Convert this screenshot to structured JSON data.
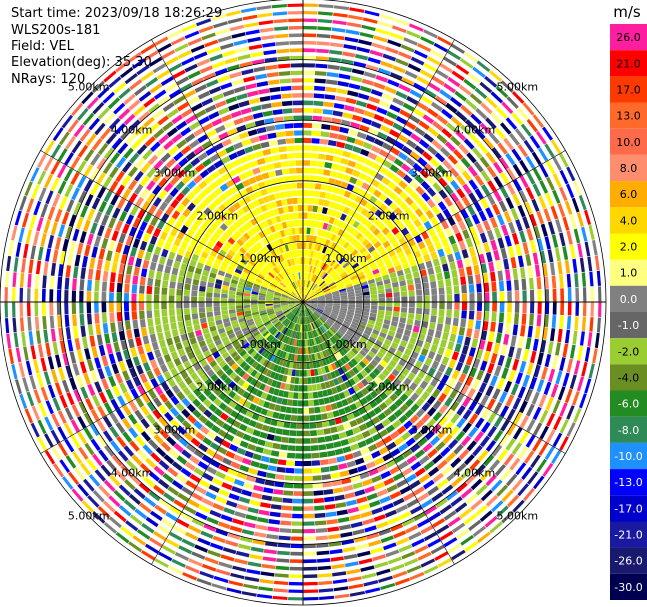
{
  "info": {
    "start_time": "Start time: 2023/09/18 18:26:29",
    "instrument": "WLS200s-181",
    "field": "Field: VEL",
    "elevation": "Elevation(deg): 35.30",
    "nrays": "NRays: 120"
  },
  "chart_data": {
    "type": "heatmap",
    "projection": "polar PPI",
    "field": "VEL",
    "n_rays": 120,
    "range_rings_labels": [
      "1.00km",
      "2.00km",
      "3.00km",
      "4.00km",
      "5.00km"
    ],
    "max_range_km": 5.0,
    "colorbar": {
      "unit": "m/s",
      "tick_labels": [
        "26.0",
        "21.0",
        "17.0",
        "13.0",
        "10.0",
        "8.0",
        "6.0",
        "4.0",
        "2.0",
        "1.0",
        "0.0",
        "-1.0",
        "-2.0",
        "-4.0",
        "-6.0",
        "-8.0",
        "-10.0",
        "-13.0",
        "-17.0",
        "-21.0",
        "-26.0",
        "-30.0"
      ],
      "colors": [
        "#ff1ea0",
        "#ff0000",
        "#ff3a00",
        "#ff6a2a",
        "#ff6b4a",
        "#ff8d6e",
        "#ffae00",
        "#ffd700",
        "#ffff00",
        "#ffff80",
        "#808080",
        "#666666",
        "#9acd32",
        "#6b8e23",
        "#228b22",
        "#2e8b57",
        "#1e90ff",
        "#0000ff",
        "#0000cd",
        "#1a1aa0",
        "#191970",
        "#000050"
      ]
    }
  }
}
